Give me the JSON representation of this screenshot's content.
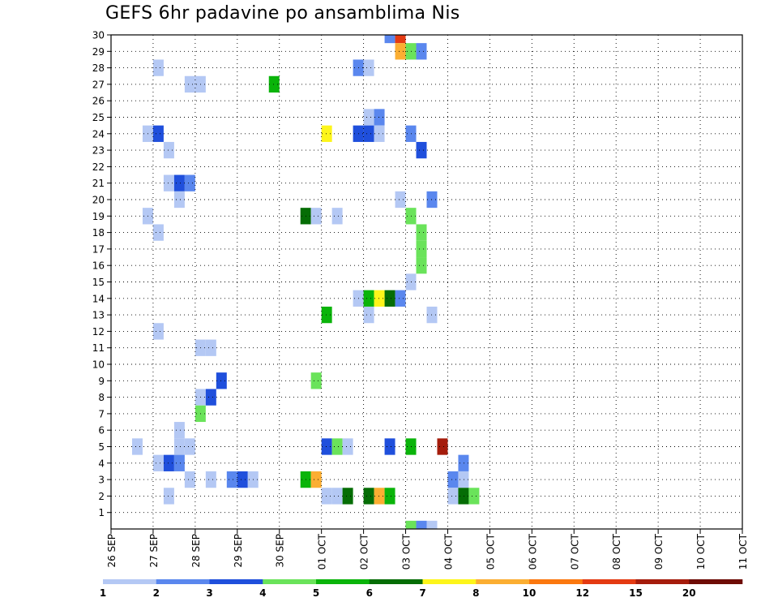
{
  "chart_data": {
    "type": "heatmap",
    "title": "GEFS 6hr padavine po ansamblima Nis",
    "xlabel": "",
    "ylabel": "",
    "y_ticks": [
      "1",
      "2",
      "3",
      "4",
      "5",
      "6",
      "7",
      "8",
      "9",
      "10",
      "11",
      "12",
      "13",
      "14",
      "15",
      "16",
      "17",
      "18",
      "19",
      "20",
      "21",
      "22",
      "23",
      "24",
      "25",
      "26",
      "27",
      "28",
      "29",
      "30"
    ],
    "x_ticks": [
      "26 SEP",
      "27 SEP",
      "28 SEP",
      "29 SEP",
      "30 SEP",
      "01 OCT",
      "02 OCT",
      "03 OCT",
      "04 OCT",
      "05 OCT",
      "06 OCT",
      "07 OCT",
      "08 OCT",
      "09 OCT",
      "10 OCT",
      "11 OCT"
    ],
    "x_range_days": [
      0,
      15
    ],
    "y_range": [
      0,
      30
    ],
    "grid": true,
    "legend_placement": "bottom",
    "colorbar": {
      "labels": [
        "1",
        "2",
        "3",
        "4",
        "5",
        "6",
        "7",
        "8",
        "10",
        "12",
        "15",
        "20"
      ],
      "colors": [
        "#b4c8f4",
        "#5a87ee",
        "#1f4fdc",
        "#6ae35a",
        "#0ab40a",
        "#056d05",
        "#fdf51a",
        "#fbae32",
        "#fb780f",
        "#e43a12",
        "#a51c0c",
        "#6e0c06"
      ]
    },
    "cells": [
      {
        "m": 30,
        "t": [
          [
            26,
            2
          ],
          [
            27,
            10
          ]
        ]
      },
      {
        "m": 29,
        "t": [
          [
            27,
            8
          ],
          [
            28,
            4
          ],
          [
            29,
            2
          ]
        ]
      },
      {
        "m": 28,
        "t": [
          [
            4,
            1
          ],
          [
            23,
            2
          ],
          [
            24,
            1
          ]
        ]
      },
      {
        "m": 27,
        "t": [
          [
            7,
            1
          ],
          [
            8,
            1
          ],
          [
            15,
            5
          ]
        ]
      },
      {
        "m": 25,
        "t": [
          [
            24,
            1
          ],
          [
            25,
            2
          ]
        ]
      },
      {
        "m": 24,
        "t": [
          [
            3,
            1
          ],
          [
            4,
            3
          ],
          [
            20,
            7
          ],
          [
            23,
            3
          ],
          [
            24,
            3
          ],
          [
            25,
            1
          ],
          [
            28,
            2
          ]
        ]
      },
      {
        "m": 23,
        "t": [
          [
            5,
            1
          ],
          [
            29,
            3
          ]
        ]
      },
      {
        "m": 21,
        "t": [
          [
            5,
            1
          ],
          [
            6,
            3
          ],
          [
            7,
            2
          ]
        ]
      },
      {
        "m": 20,
        "t": [
          [
            6,
            1
          ],
          [
            27,
            1
          ],
          [
            30,
            2
          ]
        ]
      },
      {
        "m": 19,
        "t": [
          [
            3,
            1
          ],
          [
            18,
            6
          ],
          [
            19,
            1
          ],
          [
            21,
            1
          ],
          [
            28,
            4
          ]
        ]
      },
      {
        "m": 18,
        "t": [
          [
            4,
            1
          ],
          [
            29,
            4
          ]
        ]
      },
      {
        "m": 17,
        "t": [
          [
            29,
            4
          ]
        ]
      },
      {
        "m": 16,
        "t": [
          [
            29,
            4
          ]
        ]
      },
      {
        "m": 15,
        "t": [
          [
            28,
            1
          ]
        ]
      },
      {
        "m": 14,
        "t": [
          [
            23,
            1
          ],
          [
            24,
            5
          ],
          [
            25,
            7
          ],
          [
            26,
            6
          ],
          [
            27,
            2
          ]
        ]
      },
      {
        "m": 13,
        "t": [
          [
            20,
            5
          ],
          [
            24,
            1
          ],
          [
            30,
            1
          ]
        ]
      },
      {
        "m": 12,
        "t": [
          [
            4,
            1
          ]
        ]
      },
      {
        "m": 11,
        "t": [
          [
            8,
            1
          ],
          [
            9,
            1
          ]
        ]
      },
      {
        "m": 9,
        "t": [
          [
            10,
            3
          ],
          [
            19,
            4
          ]
        ]
      },
      {
        "m": 8,
        "t": [
          [
            8,
            1
          ],
          [
            9,
            3
          ]
        ]
      },
      {
        "m": 7,
        "t": [
          [
            8,
            4
          ]
        ]
      },
      {
        "m": 6,
        "t": [
          [
            6,
            1
          ]
        ]
      },
      {
        "m": 5,
        "t": [
          [
            2,
            1
          ],
          [
            6,
            1
          ],
          [
            7,
            1
          ],
          [
            20,
            3
          ],
          [
            21,
            4
          ],
          [
            22,
            1
          ],
          [
            26,
            3
          ],
          [
            28,
            5
          ],
          [
            31,
            11
          ]
        ]
      },
      {
        "m": 4,
        "t": [
          [
            4,
            1
          ],
          [
            5,
            3
          ],
          [
            6,
            2
          ],
          [
            33,
            2
          ]
        ]
      },
      {
        "m": 3,
        "t": [
          [
            7,
            1
          ],
          [
            9,
            1
          ],
          [
            11,
            2
          ],
          [
            12,
            3
          ],
          [
            13,
            1
          ],
          [
            18,
            5
          ],
          [
            19,
            8
          ],
          [
            32,
            2
          ],
          [
            33,
            1
          ]
        ]
      },
      {
        "m": 2,
        "t": [
          [
            5,
            1
          ],
          [
            20,
            1
          ],
          [
            21,
            1
          ],
          [
            22,
            6
          ],
          [
            24,
            6
          ],
          [
            25,
            8
          ],
          [
            26,
            5
          ],
          [
            32,
            1
          ],
          [
            33,
            6
          ],
          [
            34,
            4
          ]
        ]
      },
      {
        "m": 0,
        "t": [
          [
            28,
            4
          ],
          [
            29,
            2
          ],
          [
            30,
            1
          ]
        ]
      }
    ]
  }
}
